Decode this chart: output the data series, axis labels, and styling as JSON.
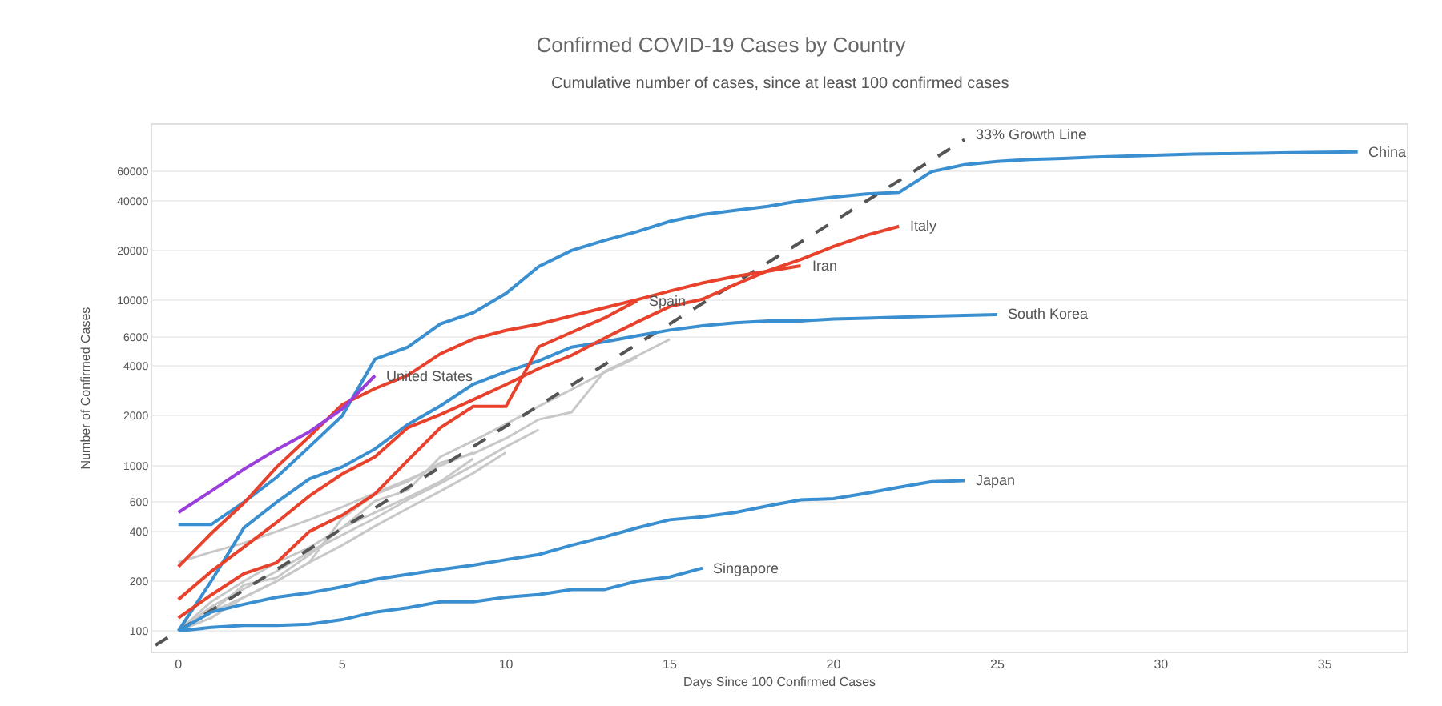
{
  "chart_data": {
    "type": "line",
    "title": "Confirmed COVID-19 Cases by Country",
    "subtitle": "Cumulative number of cases, since at least 100 confirmed cases",
    "xlabel": "Days Since 100 Confirmed Cases",
    "ylabel": "Number of Confirmed Cases",
    "series": [
      {
        "color": "#c8c8c8",
        "x": [
          0,
          1,
          2,
          3,
          4,
          5,
          6,
          7,
          8,
          9,
          10,
          11,
          12,
          13,
          14,
          15
        ],
        "values": [
          100,
          130,
          160,
          200,
          260,
          480,
          670,
          800,
          1040,
          1180,
          1460,
          1900,
          2100,
          3700,
          4600,
          5800
        ]
      },
      {
        "color": "#c8c8c8",
        "x": [
          0,
          1,
          2,
          3,
          4,
          5,
          6,
          7,
          8,
          9,
          10,
          11,
          12,
          13,
          14
        ],
        "values": [
          100,
          130,
          190,
          210,
          290,
          420,
          610,
          710,
          1130,
          1410,
          1780,
          2280,
          2880,
          3660,
          4500
        ]
      },
      {
        "color": "#c8c8c8",
        "x": [
          0,
          1,
          2,
          3,
          4,
          5,
          6,
          7,
          8,
          9,
          10,
          11
        ],
        "values": [
          100,
          140,
          180,
          230,
          300,
          380,
          480,
          620,
          780,
          1000,
          1300,
          1650
        ]
      },
      {
        "color": "#c8c8c8",
        "x": [
          0,
          1,
          2,
          3,
          4,
          5,
          6,
          7,
          8,
          9,
          10
        ],
        "values": [
          100,
          120,
          160,
          200,
          260,
          330,
          430,
          550,
          700,
          900,
          1200
        ]
      },
      {
        "color": "#c8c8c8",
        "x": [
          0,
          1,
          2,
          3,
          4,
          5,
          6,
          7,
          8,
          9
        ],
        "values": [
          100,
          150,
          200,
          260,
          320,
          420,
          520,
          640,
          800,
          1100
        ]
      },
      {
        "color": "#c8c8c8",
        "x": [
          0,
          1,
          2,
          3,
          4,
          5,
          6,
          7,
          8,
          9
        ],
        "values": [
          260,
          300,
          340,
          400,
          470,
          560,
          680,
          820,
          1000,
          1200
        ]
      },
      {
        "name": "33% Growth Line",
        "color": "#555555",
        "line_style": "dashed",
        "x": [
          -0.7,
          24
        ],
        "values": [
          82,
          93600
        ]
      },
      {
        "name": "China",
        "color": "#3a8fd0",
        "x": [
          0,
          1,
          2,
          3,
          4,
          5,
          6,
          7,
          8,
          9,
          10,
          11,
          12,
          13,
          14,
          15,
          16,
          17,
          18,
          19,
          20,
          21,
          22,
          23,
          24,
          25,
          26,
          27,
          28,
          29,
          30,
          31,
          32,
          33,
          34,
          35,
          36
        ],
        "values": [
          440,
          440,
          600,
          850,
          1300,
          2000,
          4400,
          5200,
          7200,
          8400,
          11000,
          16000,
          20000,
          23000,
          26000,
          30000,
          33000,
          35000,
          37000,
          40000,
          42000,
          44000,
          45000,
          60000,
          66000,
          69000,
          71000,
          72000,
          73500,
          74500,
          75500,
          76500,
          77000,
          77500,
          78000,
          78500,
          79000
        ]
      },
      {
        "name": "South Korea",
        "color": "#3a8fd0",
        "x": [
          0,
          1,
          2,
          3,
          4,
          5,
          6,
          7,
          8,
          9,
          10,
          11,
          12,
          13,
          14,
          15,
          16,
          17,
          18,
          19,
          20,
          21,
          22,
          23,
          24,
          25
        ],
        "values": [
          100,
          200,
          420,
          600,
          830,
          980,
          1260,
          1770,
          2300,
          3100,
          3700,
          4300,
          5200,
          5600,
          6100,
          6600,
          7000,
          7300,
          7500,
          7500,
          7700,
          7800,
          7900,
          8000,
          8100,
          8200
        ]
      },
      {
        "name": "Japan",
        "color": "#3a8fd0",
        "x": [
          0,
          1,
          2,
          3,
          4,
          5,
          6,
          7,
          8,
          9,
          10,
          11,
          12,
          13,
          14,
          15,
          16,
          17,
          18,
          19,
          20,
          21,
          22,
          23,
          24
        ],
        "values": [
          100,
          130,
          145,
          160,
          170,
          185,
          205,
          220,
          235,
          250,
          270,
          290,
          330,
          370,
          420,
          470,
          490,
          520,
          570,
          620,
          630,
          680,
          740,
          800,
          810
        ]
      },
      {
        "name": "Singapore",
        "color": "#3a8fd0",
        "x": [
          0,
          1,
          2,
          3,
          4,
          5,
          6,
          7,
          8,
          9,
          10,
          11,
          12,
          13,
          14,
          15,
          16
        ],
        "values": [
          100,
          105,
          108,
          108,
          110,
          117,
          130,
          138,
          150,
          150,
          160,
          166,
          178,
          178,
          200,
          212,
          240
        ]
      },
      {
        "name": "Italy",
        "color": "#e8412c",
        "x": [
          0,
          1,
          2,
          3,
          4,
          5,
          6,
          7,
          8,
          9,
          10,
          11,
          12,
          13,
          14,
          15,
          16,
          17,
          18,
          19,
          20,
          21,
          22
        ],
        "values": [
          155,
          229,
          322,
          453,
          655,
          888,
          1128,
          1694,
          2036,
          2502,
          3089,
          3858,
          4636,
          5883,
          7375,
          9172,
          10149,
          12462,
          15113,
          17660,
          21157,
          24747,
          27980
        ]
      },
      {
        "name": "Iran",
        "color": "#e8412c",
        "x": [
          0,
          1,
          2,
          3,
          4,
          5,
          6,
          7,
          8,
          9,
          10,
          11,
          12,
          13,
          14,
          15,
          16,
          17,
          18,
          19
        ],
        "values": [
          245,
          388,
          593,
          978,
          1501,
          2336,
          2922,
          3513,
          4747,
          5823,
          6566,
          7161,
          8042,
          9000,
          10075,
          11364,
          12729,
          13938,
          14991,
          16169
        ]
      },
      {
        "name": "Spain",
        "color": "#e8412c",
        "x": [
          0,
          1,
          2,
          3,
          4,
          5,
          6,
          7,
          8,
          9,
          10,
          11,
          12,
          13,
          14
        ],
        "values": [
          120,
          165,
          222,
          259,
          400,
          500,
          673,
          1073,
          1695,
          2277,
          2277,
          5232,
          6391,
          7798,
          9942
        ]
      },
      {
        "name": "United States",
        "color": "#9b3fdb",
        "x": [
          0,
          1,
          2,
          3,
          4,
          5,
          6
        ],
        "values": [
          520,
          700,
          950,
          1250,
          1600,
          2200,
          3500
        ]
      }
    ],
    "log": "y",
    "xlim": [
      -0.8,
      37.5
    ],
    "ylim": [
      75,
      115000
    ],
    "xticks": [
      0,
      5,
      10,
      15,
      20,
      25,
      30,
      35
    ],
    "yticks": [
      100,
      200,
      400,
      600,
      1000,
      2000,
      4000,
      6000,
      10000,
      20000,
      40000,
      60000
    ],
    "grid": "y",
    "line_style": "solid",
    "marker": "none"
  }
}
